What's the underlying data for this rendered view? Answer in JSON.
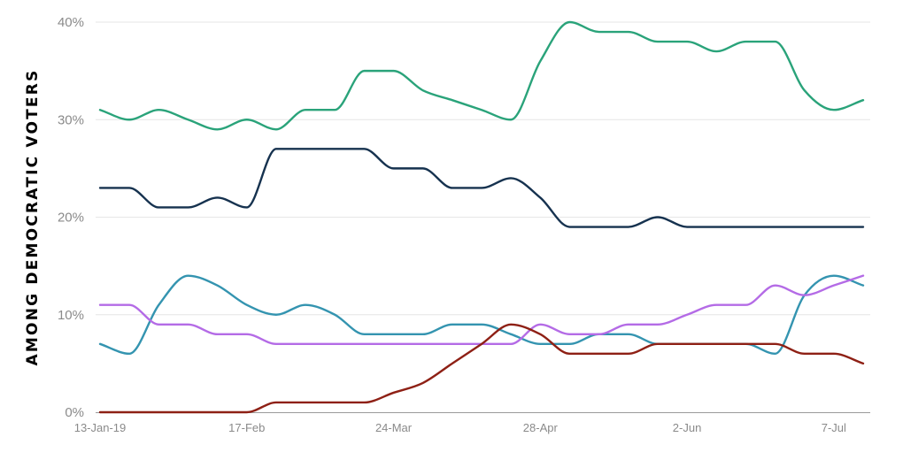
{
  "chart_data": {
    "type": "line",
    "ylabel": "AMONG DEMOCRATIC VOTERS",
    "ylim": [
      0,
      40
    ],
    "y_ticks": [
      "0%",
      "10%",
      "20%",
      "30%",
      "40%"
    ],
    "y_tick_values": [
      0,
      10,
      20,
      30,
      40
    ],
    "x_tick_labels": [
      "13-Jan-19",
      "17-Feb",
      "24-Mar",
      "28-Apr",
      "2-Jun",
      "7-Jul"
    ],
    "x_tick_indices": [
      0,
      5,
      10,
      15,
      20,
      25
    ],
    "x": [
      "13-Jan-19",
      "20-Jan",
      "27-Jan",
      "3-Feb",
      "10-Feb",
      "17-Feb",
      "24-Feb",
      "3-Mar",
      "10-Mar",
      "17-Mar",
      "24-Mar",
      "31-Mar",
      "7-Apr",
      "14-Apr",
      "21-Apr",
      "28-Apr",
      "5-May",
      "12-May",
      "19-May",
      "26-May",
      "2-Jun",
      "9-Jun",
      "16-Jun",
      "23-Jun",
      "30-Jun",
      "7-Jul",
      "14-Jul"
    ],
    "grid": true,
    "legend": "none",
    "series": [
      {
        "color": "#2aa37a",
        "values": [
          31,
          30,
          31,
          30,
          29,
          30,
          29,
          31,
          31,
          35,
          35,
          33,
          32,
          31,
          30,
          36,
          40,
          39,
          39,
          38,
          38,
          37,
          38,
          38,
          33,
          31,
          32
        ]
      },
      {
        "color": "#16324f",
        "values": [
          23,
          23,
          21,
          21,
          22,
          21,
          27,
          27,
          27,
          27,
          25,
          25,
          23,
          23,
          24,
          22,
          19,
          19,
          19,
          20,
          19,
          19,
          19,
          19,
          19,
          19,
          19
        ]
      },
      {
        "color": "#3494b0",
        "values": [
          7,
          6,
          11,
          14,
          13,
          11,
          10,
          11,
          10,
          8,
          8,
          8,
          9,
          9,
          8,
          7,
          7,
          8,
          8,
          7,
          7,
          7,
          7,
          6,
          12,
          14,
          13
        ]
      },
      {
        "color": "#b46be6",
        "values": [
          11,
          11,
          9,
          9,
          8,
          8,
          7,
          7,
          7,
          7,
          7,
          7,
          7,
          7,
          7,
          9,
          8,
          8,
          9,
          9,
          10,
          11,
          11,
          13,
          12,
          13,
          14
        ]
      },
      {
        "color": "#8e2015",
        "values": [
          0,
          0,
          0,
          0,
          0,
          0,
          1,
          1,
          1,
          1,
          2,
          3,
          5,
          7,
          9,
          8,
          6,
          6,
          6,
          7,
          7,
          7,
          7,
          7,
          6,
          6,
          5
        ]
      }
    ]
  }
}
